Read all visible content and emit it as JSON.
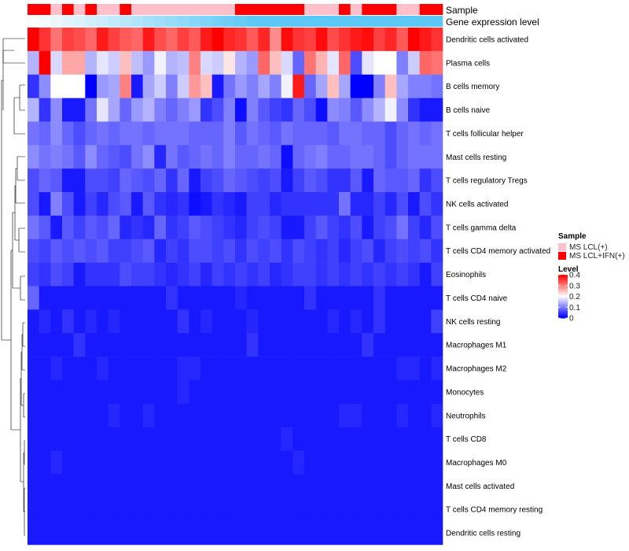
{
  "chart_data": {
    "type": "heatmap",
    "annotation_labels": [
      "Sample",
      "Gene expression level"
    ],
    "sample_groups": [
      "MS LCL(+)",
      "MS LCL+IFN(+)"
    ],
    "sample_colors": {
      "MS LCL(+)": "#ffc0cb",
      "MS LCL+IFN(+)": "#ff0000"
    },
    "expression_color": "#5bc8f5",
    "expression_gradient_end": "#ffffff",
    "sample_assignment": [
      1,
      1,
      0,
      1,
      0,
      1,
      0,
      0,
      1,
      0,
      0,
      0,
      0,
      0,
      0,
      0,
      0,
      0,
      1,
      1,
      1,
      1,
      1,
      1,
      0,
      0,
      0,
      1,
      0,
      1,
      1,
      1,
      0,
      0,
      1,
      1
    ],
    "rows": [
      "Dendritic cells activated",
      "Plasma cells",
      "B cells memory",
      "B cells naive",
      "T cells follicular helper",
      "Mast cells resting",
      "T cells regulatory  Tregs",
      "NK cells activated",
      "T cells gamma delta",
      "T cells CD4 memory activated",
      "Eosinophils",
      "T cells CD4 naive",
      "NK cells resting",
      "Macrophages M1",
      "Macrophages M2",
      "Monocytes",
      "Neutrophils",
      "T cells CD8",
      "Macrophages M0",
      "Mast cells activated",
      "T cells CD4 memory resting",
      "Dendritic cells resting"
    ],
    "values": [
      [
        0.4,
        0.36,
        0.31,
        0.35,
        0.34,
        0.32,
        0.38,
        0.35,
        0.33,
        0.32,
        0.38,
        0.34,
        0.32,
        0.35,
        0.33,
        0.38,
        0.4,
        0.37,
        0.36,
        0.33,
        0.37,
        0.29,
        0.39,
        0.36,
        0.35,
        0.39,
        0.34,
        0.36,
        0.38,
        0.39,
        0.35,
        0.37,
        0.33,
        0.4,
        0.38,
        0.36
      ],
      [
        0.14,
        0.4,
        0.17,
        0.27,
        0.27,
        0.14,
        0.18,
        0.16,
        0.25,
        0.15,
        0.12,
        0.19,
        0.14,
        0.15,
        0.3,
        0.17,
        0.16,
        0.22,
        0.14,
        0.12,
        0.32,
        0.25,
        0.17,
        0.08,
        0.31,
        0.26,
        0.18,
        0.32,
        0.06,
        0.18,
        0.2,
        0.2,
        0.1,
        0.16,
        0.32,
        0.31
      ],
      [
        0.04,
        0.11,
        0.2,
        0.2,
        0.2,
        0.0,
        0.12,
        0.13,
        0.3,
        0.02,
        0.13,
        0.16,
        0.1,
        0.16,
        0.28,
        0.25,
        0.02,
        0.09,
        0.12,
        0.1,
        0.13,
        0.1,
        0.19,
        0.38,
        0.08,
        0.13,
        0.25,
        0.13,
        0.0,
        0.0,
        0.1,
        0.25,
        0.13,
        0.1,
        0.1,
        0.09
      ],
      [
        0.14,
        0.04,
        0.11,
        0.02,
        0.02,
        0.09,
        0.18,
        0.13,
        0.08,
        0.12,
        0.14,
        0.1,
        0.08,
        0.1,
        0.12,
        0.04,
        0.06,
        0.1,
        0.01,
        0.1,
        0.07,
        0.05,
        0.04,
        0.08,
        0.06,
        0.01,
        0.11,
        0.1,
        0.07,
        0.11,
        0.14,
        0.19,
        0.11,
        0.04,
        0.02,
        0.02
      ],
      [
        0.09,
        0.08,
        0.11,
        0.08,
        0.06,
        0.08,
        0.09,
        0.08,
        0.09,
        0.09,
        0.08,
        0.09,
        0.09,
        0.09,
        0.08,
        0.08,
        0.08,
        0.1,
        0.07,
        0.09,
        0.08,
        0.07,
        0.09,
        0.08,
        0.08,
        0.08,
        0.07,
        0.09,
        0.09,
        0.08,
        0.08,
        0.06,
        0.08,
        0.09,
        0.08,
        0.09
      ],
      [
        0.11,
        0.09,
        0.1,
        0.09,
        0.07,
        0.11,
        0.08,
        0.07,
        0.06,
        0.09,
        0.11,
        0.03,
        0.09,
        0.07,
        0.08,
        0.09,
        0.08,
        0.1,
        0.08,
        0.08,
        0.09,
        0.08,
        0.01,
        0.08,
        0.09,
        0.1,
        0.08,
        0.08,
        0.09,
        0.09,
        0.08,
        0.06,
        0.08,
        0.09,
        0.09,
        0.09
      ],
      [
        0.06,
        0.08,
        0.07,
        0.02,
        0.02,
        0.06,
        0.06,
        0.05,
        0.08,
        0.07,
        0.06,
        0.08,
        0.04,
        0.08,
        0.02,
        0.05,
        0.06,
        0.08,
        0.07,
        0.06,
        0.05,
        0.06,
        0.02,
        0.05,
        0.07,
        0.06,
        0.04,
        0.04,
        0.07,
        0.02,
        0.08,
        0.07,
        0.07,
        0.08,
        0.04,
        0.06
      ],
      [
        0.06,
        0.02,
        0.1,
        0.06,
        0.02,
        0.05,
        0.03,
        0.06,
        0.07,
        0.02,
        0.07,
        0.04,
        0.03,
        0.04,
        0.01,
        0.02,
        0.04,
        0.03,
        0.02,
        0.05,
        0.05,
        0.03,
        0.04,
        0.04,
        0.04,
        0.04,
        0.04,
        0.09,
        0.03,
        0.03,
        0.05,
        0.03,
        0.06,
        0.02,
        0.06,
        0.04
      ],
      [
        0.09,
        0.07,
        0.02,
        0.07,
        0.05,
        0.07,
        0.06,
        0.08,
        0.03,
        0.04,
        0.03,
        0.08,
        0.04,
        0.05,
        0.07,
        0.06,
        0.05,
        0.04,
        0.03,
        0.05,
        0.06,
        0.05,
        0.02,
        0.02,
        0.05,
        0.07,
        0.05,
        0.04,
        0.06,
        0.02,
        0.05,
        0.06,
        0.09,
        0.05,
        0.03,
        0.06
      ],
      [
        0.06,
        0.05,
        0.07,
        0.06,
        0.07,
        0.06,
        0.07,
        0.05,
        0.05,
        0.06,
        0.07,
        0.03,
        0.05,
        0.04,
        0.06,
        0.06,
        0.05,
        0.06,
        0.04,
        0.06,
        0.05,
        0.06,
        0.04,
        0.06,
        0.05,
        0.04,
        0.05,
        0.03,
        0.05,
        0.06,
        0.03,
        0.05,
        0.06,
        0.05,
        0.06,
        0.04
      ],
      [
        0.05,
        0.04,
        0.06,
        0.05,
        0.02,
        0.04,
        0.04,
        0.04,
        0.06,
        0.05,
        0.05,
        0.04,
        0.03,
        0.04,
        0.05,
        0.03,
        0.05,
        0.04,
        0.05,
        0.04,
        0.05,
        0.03,
        0.04,
        0.05,
        0.05,
        0.04,
        0.05,
        0.04,
        0.05,
        0.04,
        0.05,
        0.04,
        0.05,
        0.04,
        0.02,
        0.05
      ],
      [
        0.08,
        0.02,
        0.02,
        0.02,
        0.02,
        0.02,
        0.02,
        0.02,
        0.02,
        0.02,
        0.02,
        0.02,
        0.04,
        0.02,
        0.02,
        0.02,
        0.02,
        0.02,
        0.03,
        0.02,
        0.02,
        0.02,
        0.02,
        0.02,
        0.04,
        0.02,
        0.02,
        0.02,
        0.02,
        0.02,
        0.04,
        0.02,
        0.02,
        0.02,
        0.02,
        0.02
      ],
      [
        0.02,
        0.03,
        0.02,
        0.04,
        0.02,
        0.03,
        0.02,
        0.03,
        0.02,
        0.02,
        0.02,
        0.02,
        0.02,
        0.04,
        0.02,
        0.03,
        0.02,
        0.02,
        0.02,
        0.03,
        0.02,
        0.02,
        0.02,
        0.02,
        0.02,
        0.02,
        0.03,
        0.02,
        0.03,
        0.02,
        0.04,
        0.02,
        0.02,
        0.02,
        0.02,
        0.05
      ],
      [
        0.02,
        0.02,
        0.02,
        0.02,
        0.04,
        0.02,
        0.02,
        0.02,
        0.02,
        0.02,
        0.02,
        0.02,
        0.02,
        0.02,
        0.02,
        0.02,
        0.02,
        0.02,
        0.02,
        0.04,
        0.02,
        0.02,
        0.02,
        0.02,
        0.02,
        0.02,
        0.02,
        0.02,
        0.02,
        0.04,
        0.02,
        0.02,
        0.02,
        0.02,
        0.02,
        0.02
      ],
      [
        0.02,
        0.02,
        0.03,
        0.02,
        0.02,
        0.02,
        0.03,
        0.02,
        0.02,
        0.02,
        0.02,
        0.02,
        0.02,
        0.03,
        0.03,
        0.02,
        0.02,
        0.02,
        0.02,
        0.02,
        0.02,
        0.02,
        0.02,
        0.02,
        0.02,
        0.02,
        0.02,
        0.02,
        0.02,
        0.02,
        0.02,
        0.02,
        0.03,
        0.03,
        0.02,
        0.03
      ],
      [
        0.02,
        0.02,
        0.02,
        0.02,
        0.02,
        0.02,
        0.02,
        0.02,
        0.02,
        0.02,
        0.02,
        0.02,
        0.02,
        0.03,
        0.02,
        0.02,
        0.02,
        0.02,
        0.02,
        0.02,
        0.02,
        0.02,
        0.02,
        0.02,
        0.02,
        0.02,
        0.02,
        0.02,
        0.02,
        0.02,
        0.02,
        0.02,
        0.02,
        0.02,
        0.02,
        0.02
      ],
      [
        0.02,
        0.02,
        0.02,
        0.02,
        0.02,
        0.02,
        0.02,
        0.03,
        0.02,
        0.02,
        0.03,
        0.02,
        0.02,
        0.02,
        0.02,
        0.02,
        0.02,
        0.02,
        0.02,
        0.02,
        0.02,
        0.02,
        0.02,
        0.02,
        0.02,
        0.02,
        0.02,
        0.03,
        0.03,
        0.02,
        0.02,
        0.02,
        0.03,
        0.02,
        0.02,
        0.03
      ],
      [
        0.02,
        0.02,
        0.02,
        0.02,
        0.02,
        0.02,
        0.02,
        0.02,
        0.02,
        0.02,
        0.02,
        0.02,
        0.02,
        0.02,
        0.02,
        0.02,
        0.02,
        0.02,
        0.02,
        0.02,
        0.02,
        0.02,
        0.03,
        0.02,
        0.02,
        0.02,
        0.02,
        0.02,
        0.02,
        0.02,
        0.02,
        0.02,
        0.02,
        0.02,
        0.02,
        0.02
      ],
      [
        0.02,
        0.02,
        0.03,
        0.02,
        0.02,
        0.02,
        0.02,
        0.02,
        0.02,
        0.02,
        0.02,
        0.02,
        0.02,
        0.02,
        0.02,
        0.02,
        0.02,
        0.02,
        0.02,
        0.02,
        0.02,
        0.02,
        0.02,
        0.03,
        0.02,
        0.02,
        0.02,
        0.02,
        0.02,
        0.02,
        0.02,
        0.02,
        0.02,
        0.02,
        0.02,
        0.02
      ],
      [
        0.02,
        0.02,
        0.02,
        0.02,
        0.02,
        0.02,
        0.02,
        0.02,
        0.02,
        0.02,
        0.02,
        0.02,
        0.02,
        0.02,
        0.02,
        0.02,
        0.02,
        0.02,
        0.02,
        0.02,
        0.02,
        0.02,
        0.02,
        0.02,
        0.02,
        0.02,
        0.02,
        0.02,
        0.02,
        0.02,
        0.02,
        0.02,
        0.02,
        0.02,
        0.02,
        0.02
      ],
      [
        0.02,
        0.02,
        0.02,
        0.02,
        0.02,
        0.02,
        0.02,
        0.02,
        0.02,
        0.02,
        0.02,
        0.02,
        0.02,
        0.02,
        0.02,
        0.02,
        0.02,
        0.02,
        0.02,
        0.02,
        0.02,
        0.02,
        0.02,
        0.02,
        0.02,
        0.02,
        0.02,
        0.02,
        0.02,
        0.02,
        0.02,
        0.02,
        0.02,
        0.02,
        0.02,
        0.02
      ],
      [
        0.02,
        0.02,
        0.02,
        0.02,
        0.02,
        0.02,
        0.02,
        0.02,
        0.02,
        0.02,
        0.02,
        0.02,
        0.02,
        0.02,
        0.02,
        0.02,
        0.02,
        0.02,
        0.02,
        0.02,
        0.02,
        0.02,
        0.02,
        0.02,
        0.02,
        0.02,
        0.02,
        0.02,
        0.02,
        0.02,
        0.02,
        0.02,
        0.02,
        0.02,
        0.02,
        0.02
      ]
    ],
    "color_scale": {
      "min": 0,
      "max": 0.4,
      "low": "#0000ff",
      "mid": "#ffffff",
      "high": "#ff0000"
    },
    "legend": {
      "sample_title": "Sample",
      "level_title": "Level",
      "level_ticks": [
        0.4,
        0.3,
        0.2,
        0.1,
        0
      ]
    }
  }
}
